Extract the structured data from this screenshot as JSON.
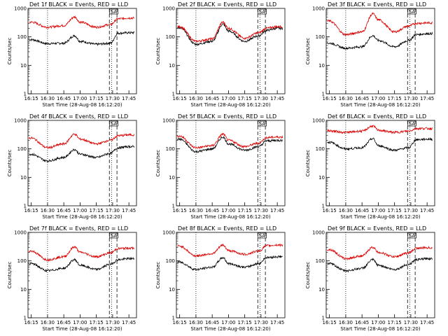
{
  "figure": {
    "xlabel": "Start Time (28-Aug-08 16:12:20)",
    "ylabel": "Counts/sec",
    "x_ticks": [
      "16:15",
      "16:30",
      "16:45",
      "17:00",
      "17:15",
      "17:30",
      "17:45"
    ],
    "y_ticks": [
      "1",
      "10",
      "100",
      "1000"
    ],
    "series_colors": {
      "Events": "#000000",
      "LLD": "#dd0000"
    },
    "saa_marker": "SA"
  },
  "chart_data": [
    {
      "type": "line",
      "title": "Det 1f BLACK = Events, RED = LLD",
      "ylabel": "Counts/sec",
      "xlabel": "Start Time (28-Aug-08 16:12:20)",
      "ylim": [
        1,
        1000
      ],
      "log_y": true,
      "x": [
        "16:15",
        "16:30",
        "16:45",
        "16:55",
        "17:00",
        "17:15",
        "17:28",
        "17:35",
        "17:45"
      ],
      "series": [
        {
          "name": "Events",
          "values": [
            80,
            58,
            60,
            110,
            70,
            55,
            60,
            135,
            140
          ]
        },
        {
          "name": "LLD",
          "values": [
            330,
            220,
            250,
            500,
            330,
            220,
            270,
            430,
            460
          ]
        }
      ]
    },
    {
      "type": "line",
      "title": "Det 2f BLACK = Events, RED = LLD",
      "ylabel": "Counts/sec",
      "xlabel": "Start Time (28-Aug-08 16:12:20)",
      "ylim": [
        1,
        1000
      ],
      "log_y": true,
      "x": [
        "16:15",
        "16:30",
        "16:45",
        "16:55",
        "17:00",
        "17:15",
        "17:28",
        "17:35",
        "17:45"
      ],
      "series": [
        {
          "name": "Events",
          "values": [
            210,
            55,
            70,
            280,
            160,
            70,
            110,
            170,
            200
          ]
        },
        {
          "name": "LLD",
          "values": [
            230,
            70,
            85,
            330,
            200,
            90,
            140,
            200,
            230
          ]
        }
      ]
    },
    {
      "type": "line",
      "title": "Det 3f BLACK = Events, RED = LLD",
      "ylabel": "Counts/sec",
      "xlabel": "Start Time (28-Aug-08 16:12:20)",
      "ylim": [
        1,
        1000
      ],
      "log_y": true,
      "x": [
        "16:15",
        "16:30",
        "16:45",
        "16:55",
        "17:00",
        "17:15",
        "17:28",
        "17:35",
        "17:45"
      ],
      "series": [
        {
          "name": "Events",
          "values": [
            60,
            40,
            45,
            110,
            75,
            45,
            75,
            120,
            130
          ]
        },
        {
          "name": "LLD",
          "values": [
            360,
            120,
            150,
            650,
            400,
            150,
            240,
            300,
            310
          ]
        }
      ]
    },
    {
      "type": "line",
      "title": "Det 4f BLACK = Events, RED = LLD",
      "ylabel": "Counts/sec",
      "xlabel": "Start Time (28-Aug-08 16:12:20)",
      "ylim": [
        1,
        1000
      ],
      "log_y": true,
      "x": [
        "16:15",
        "16:30",
        "16:45",
        "16:55",
        "17:00",
        "17:15",
        "17:28",
        "17:35",
        "17:45"
      ],
      "series": [
        {
          "name": "Events",
          "values": [
            65,
            38,
            50,
            95,
            65,
            50,
            70,
            110,
            120
          ]
        },
        {
          "name": "LLD",
          "values": [
            240,
            110,
            150,
            330,
            220,
            150,
            200,
            290,
            310
          ]
        }
      ]
    },
    {
      "type": "line",
      "title": "Det 5f BLACK = Events, RED = LLD",
      "ylabel": "Counts/sec",
      "xlabel": "Start Time (28-Aug-08 16:12:20)",
      "ylim": [
        1,
        1000
      ],
      "log_y": true,
      "x": [
        "16:15",
        "16:30",
        "16:45",
        "16:55",
        "17:00",
        "17:15",
        "17:28",
        "17:35",
        "17:45"
      ],
      "series": [
        {
          "name": "Events",
          "values": [
            220,
            80,
            100,
            260,
            150,
            90,
            120,
            190,
            200
          ]
        },
        {
          "name": "LLD",
          "values": [
            280,
            110,
            130,
            330,
            200,
            120,
            160,
            250,
            260
          ]
        }
      ]
    },
    {
      "type": "line",
      "title": "Det 6f BLACK = Events, RED = LLD",
      "ylabel": "Counts/sec",
      "xlabel": "Start Time (28-Aug-08 16:12:20)",
      "ylim": [
        1,
        1000
      ],
      "log_y": true,
      "x": [
        "16:15",
        "16:30",
        "16:45",
        "16:55",
        "17:00",
        "17:15",
        "17:28",
        "17:35",
        "17:45"
      ],
      "series": [
        {
          "name": "Events",
          "values": [
            170,
            100,
            110,
            230,
            130,
            90,
            110,
            210,
            220
          ]
        },
        {
          "name": "LLD",
          "values": [
            430,
            380,
            420,
            640,
            450,
            380,
            420,
            520,
            520
          ]
        }
      ]
    },
    {
      "type": "line",
      "title": "Det 7f BLACK = Events, RED = LLD",
      "ylabel": "Counts/sec",
      "xlabel": "Start Time (28-Aug-08 16:12:20)",
      "ylim": [
        1,
        1000
      ],
      "log_y": true,
      "x": [
        "16:15",
        "16:30",
        "16:45",
        "16:55",
        "17:00",
        "17:15",
        "17:28",
        "17:35",
        "17:45"
      ],
      "series": [
        {
          "name": "Events",
          "values": [
            80,
            45,
            55,
            110,
            70,
            50,
            75,
            110,
            120
          ]
        },
        {
          "name": "LLD",
          "values": [
            220,
            110,
            140,
            310,
            200,
            140,
            190,
            270,
            280
          ]
        }
      ]
    },
    {
      "type": "line",
      "title": "Det 8f BLACK = Events, RED = LLD",
      "ylabel": "Counts/sec",
      "xlabel": "Start Time (28-Aug-08 16:12:20)",
      "ylim": [
        1,
        1000
      ],
      "log_y": true,
      "x": [
        "16:15",
        "16:30",
        "16:45",
        "16:55",
        "17:00",
        "17:15",
        "17:28",
        "17:35",
        "17:45"
      ],
      "series": [
        {
          "name": "Events",
          "values": [
            90,
            50,
            60,
            130,
            80,
            60,
            80,
            130,
            140
          ]
        },
        {
          "name": "LLD",
          "values": [
            330,
            150,
            180,
            360,
            230,
            170,
            220,
            340,
            360
          ]
        }
      ]
    },
    {
      "type": "line",
      "title": "Det 9f BLACK = Events, RED = LLD",
      "ylabel": "Counts/sec",
      "xlabel": "Start Time (28-Aug-08 16:12:20)",
      "ylim": [
        1,
        1000
      ],
      "log_y": true,
      "x": [
        "16:15",
        "16:30",
        "16:45",
        "16:55",
        "17:00",
        "17:15",
        "17:28",
        "17:35",
        "17:45"
      ],
      "series": [
        {
          "name": "Events",
          "values": [
            80,
            45,
            55,
            110,
            70,
            50,
            75,
            110,
            120
          ]
        },
        {
          "name": "LLD",
          "values": [
            250,
            120,
            150,
            300,
            200,
            140,
            190,
            280,
            290
          ]
        }
      ]
    }
  ]
}
